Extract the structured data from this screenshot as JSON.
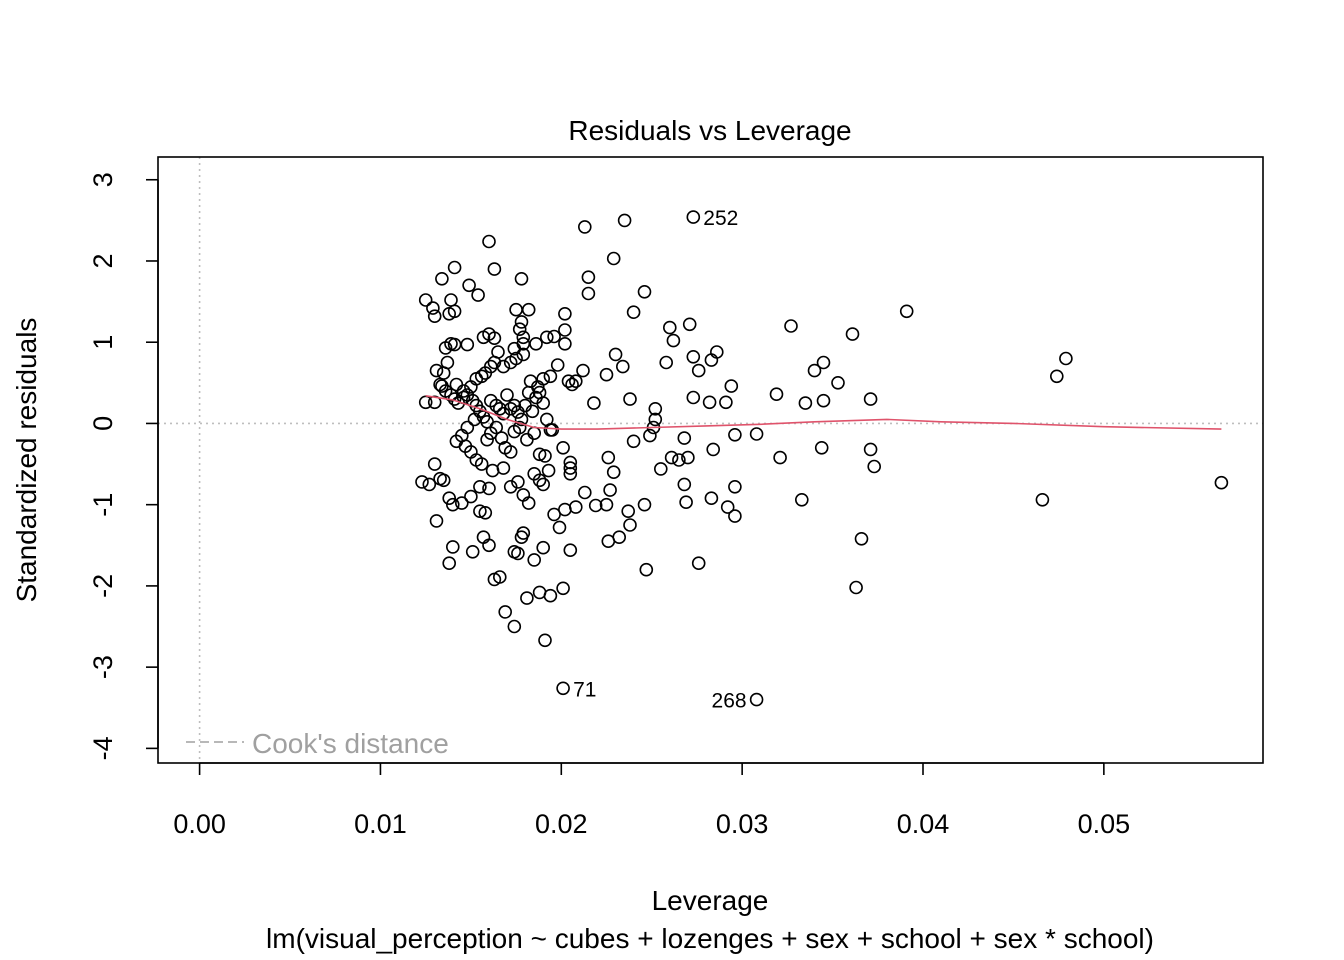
{
  "chart_data": {
    "type": "scatter",
    "title": "Residuals vs Leverage",
    "xlabel": "Leverage",
    "subtitle": "lm(visual_perception ~ cubes + lozenges + sex + school + sex * school)",
    "ylabel": "Standardized residuals",
    "xlim": [
      -0.0023,
      0.0588
    ],
    "ylim": [
      -4.18,
      3.28
    ],
    "xticks": [
      "0.00",
      "0.01",
      "0.02",
      "0.03",
      "0.04",
      "0.05"
    ],
    "xtick_values": [
      0,
      0.01,
      0.02,
      0.03,
      0.04,
      0.05
    ],
    "yticks": [
      "-4",
      "-3",
      "-2",
      "-1",
      "0",
      "1",
      "2",
      "3"
    ],
    "ytick_values": [
      -4,
      -3,
      -2,
      -1,
      0,
      1,
      2,
      3
    ],
    "grid": false,
    "reference_lines": {
      "x": 0,
      "y": 0,
      "style": "dotted",
      "color": "#bebebe"
    },
    "legend": {
      "entries": [
        "Cook's distance"
      ],
      "position": "bottom-left",
      "line_style": "dashed",
      "color": "#a0a0a0"
    },
    "smooth_color": "#DF536B",
    "smooth": [
      [
        0.0125,
        0.34
      ],
      [
        0.014,
        0.29
      ],
      [
        0.0155,
        0.18
      ],
      [
        0.017,
        0.05
      ],
      [
        0.0185,
        -0.05
      ],
      [
        0.02,
        -0.07
      ],
      [
        0.022,
        -0.07
      ],
      [
        0.025,
        -0.05
      ],
      [
        0.028,
        -0.03
      ],
      [
        0.031,
        -0.01
      ],
      [
        0.034,
        0.02
      ],
      [
        0.038,
        0.05
      ],
      [
        0.041,
        0.02
      ],
      [
        0.045,
        0.0
      ],
      [
        0.05,
        -0.04
      ],
      [
        0.0565,
        -0.07
      ]
    ],
    "annotations": [
      {
        "text": "252",
        "x": 0.0273,
        "y": 2.54,
        "side": "right"
      },
      {
        "text": "71",
        "x": 0.0201,
        "y": -3.26,
        "side": "right"
      },
      {
        "text": "268",
        "x": 0.0308,
        "y": -3.4,
        "side": "left"
      }
    ],
    "points": [
      [
        0.0273,
        2.54
      ],
      [
        0.0201,
        -3.26
      ],
      [
        0.0308,
        -3.4
      ],
      [
        0.0125,
        1.52
      ],
      [
        0.0129,
        1.42
      ],
      [
        0.013,
        1.32
      ],
      [
        0.0134,
        1.78
      ],
      [
        0.0141,
        1.92
      ],
      [
        0.0139,
        1.52
      ],
      [
        0.0141,
        1.38
      ],
      [
        0.0138,
        1.35
      ],
      [
        0.0149,
        1.7
      ],
      [
        0.0154,
        1.58
      ],
      [
        0.016,
        2.24
      ],
      [
        0.0163,
        1.9
      ],
      [
        0.0178,
        1.78
      ],
      [
        0.0213,
        2.42
      ],
      [
        0.0235,
        2.5
      ],
      [
        0.0229,
        2.03
      ],
      [
        0.0215,
        1.8
      ],
      [
        0.0215,
        1.6
      ],
      [
        0.0246,
        1.62
      ],
      [
        0.024,
        1.37
      ],
      [
        0.0175,
        1.4
      ],
      [
        0.0182,
        1.4
      ],
      [
        0.0178,
        1.25
      ],
      [
        0.0202,
        1.35
      ],
      [
        0.0202,
        1.15
      ],
      [
        0.0202,
        0.98
      ],
      [
        0.0192,
        1.06
      ],
      [
        0.0196,
        1.07
      ],
      [
        0.0177,
        1.16
      ],
      [
        0.0179,
        1.06
      ],
      [
        0.0179,
        0.98
      ],
      [
        0.0186,
        0.98
      ],
      [
        0.0174,
        0.92
      ],
      [
        0.0165,
        0.88
      ],
      [
        0.0163,
        1.05
      ],
      [
        0.016,
        1.1
      ],
      [
        0.0157,
        1.06
      ],
      [
        0.0148,
        0.97
      ],
      [
        0.0141,
        0.97
      ],
      [
        0.0139,
        0.98
      ],
      [
        0.0136,
        0.93
      ],
      [
        0.0137,
        0.75
      ],
      [
        0.0135,
        0.62
      ],
      [
        0.0131,
        0.65
      ],
      [
        0.0134,
        0.46
      ],
      [
        0.0142,
        0.48
      ],
      [
        0.0146,
        0.4
      ],
      [
        0.015,
        0.45
      ],
      [
        0.0153,
        0.55
      ],
      [
        0.0156,
        0.58
      ],
      [
        0.0158,
        0.62
      ],
      [
        0.0161,
        0.7
      ],
      [
        0.0163,
        0.75
      ],
      [
        0.0168,
        0.7
      ],
      [
        0.0172,
        0.75
      ],
      [
        0.0175,
        0.8
      ],
      [
        0.0179,
        0.85
      ],
      [
        0.0183,
        0.52
      ],
      [
        0.0187,
        0.45
      ],
      [
        0.019,
        0.55
      ],
      [
        0.0194,
        0.58
      ],
      [
        0.0198,
        0.72
      ],
      [
        0.0204,
        0.52
      ],
      [
        0.0206,
        0.48
      ],
      [
        0.0208,
        0.52
      ],
      [
        0.0212,
        0.65
      ],
      [
        0.0218,
        0.25
      ],
      [
        0.0225,
        0.6
      ],
      [
        0.023,
        0.85
      ],
      [
        0.0234,
        0.7
      ],
      [
        0.0238,
        0.3
      ],
      [
        0.0258,
        0.75
      ],
      [
        0.026,
        1.18
      ],
      [
        0.0262,
        1.02
      ],
      [
        0.0271,
        1.22
      ],
      [
        0.0273,
        0.82
      ],
      [
        0.0276,
        0.65
      ],
      [
        0.0283,
        0.78
      ],
      [
        0.0286,
        0.88
      ],
      [
        0.0294,
        0.46
      ],
      [
        0.0282,
        0.26
      ],
      [
        0.0291,
        0.26
      ],
      [
        0.0273,
        0.32
      ],
      [
        0.0319,
        0.36
      ],
      [
        0.0327,
        1.2
      ],
      [
        0.0335,
        0.25
      ],
      [
        0.034,
        0.65
      ],
      [
        0.0345,
        0.75
      ],
      [
        0.0345,
        0.28
      ],
      [
        0.0353,
        0.5
      ],
      [
        0.0361,
        1.1
      ],
      [
        0.0371,
        0.3
      ],
      [
        0.0391,
        1.38
      ],
      [
        0.0474,
        0.58
      ],
      [
        0.0479,
        0.8
      ],
      [
        0.0125,
        0.26
      ],
      [
        0.013,
        0.26
      ],
      [
        0.0133,
        0.48
      ],
      [
        0.0136,
        0.4
      ],
      [
        0.0139,
        0.35
      ],
      [
        0.0141,
        0.3
      ],
      [
        0.0143,
        0.25
      ],
      [
        0.0146,
        0.32
      ],
      [
        0.0148,
        0.35
      ],
      [
        0.0151,
        0.28
      ],
      [
        0.0153,
        0.22
      ],
      [
        0.0155,
        0.15
      ],
      [
        0.0157,
        0.08
      ],
      [
        0.0159,
        0.02
      ],
      [
        0.0161,
        0.28
      ],
      [
        0.0164,
        0.22
      ],
      [
        0.0166,
        0.18
      ],
      [
        0.0168,
        0.12
      ],
      [
        0.017,
        0.35
      ],
      [
        0.0172,
        0.18
      ],
      [
        0.0174,
        0.22
      ],
      [
        0.0176,
        0.14
      ],
      [
        0.0178,
        0.05
      ],
      [
        0.018,
        0.22
      ],
      [
        0.0182,
        0.38
      ],
      [
        0.0184,
        0.15
      ],
      [
        0.0186,
        0.32
      ],
      [
        0.0188,
        0.38
      ],
      [
        0.019,
        0.25
      ],
      [
        0.0192,
        0.05
      ],
      [
        0.0195,
        -0.08
      ],
      [
        0.0152,
        0.05
      ],
      [
        0.0148,
        -0.05
      ],
      [
        0.0145,
        -0.15
      ],
      [
        0.0142,
        -0.22
      ],
      [
        0.0147,
        -0.28
      ],
      [
        0.015,
        -0.35
      ],
      [
        0.0153,
        -0.45
      ],
      [
        0.0156,
        -0.5
      ],
      [
        0.0159,
        -0.2
      ],
      [
        0.0161,
        -0.12
      ],
      [
        0.0164,
        -0.05
      ],
      [
        0.0167,
        -0.18
      ],
      [
        0.0169,
        -0.3
      ],
      [
        0.0172,
        -0.35
      ],
      [
        0.0174,
        -0.1
      ],
      [
        0.0177,
        -0.05
      ],
      [
        0.0181,
        -0.2
      ],
      [
        0.0185,
        -0.12
      ],
      [
        0.0188,
        -0.38
      ],
      [
        0.0191,
        -0.4
      ],
      [
        0.0194,
        -0.08
      ],
      [
        0.0201,
        -0.3
      ],
      [
        0.0205,
        -0.55
      ],
      [
        0.0205,
        -0.48
      ],
      [
        0.0226,
        -0.42
      ],
      [
        0.0229,
        -0.6
      ],
      [
        0.024,
        -0.22
      ],
      [
        0.0249,
        -0.15
      ],
      [
        0.0252,
        0.05
      ],
      [
        0.0252,
        0.18
      ],
      [
        0.0251,
        -0.05
      ],
      [
        0.0255,
        -0.56
      ],
      [
        0.0261,
        -0.42
      ],
      [
        0.0265,
        -0.45
      ],
      [
        0.0268,
        -0.18
      ],
      [
        0.027,
        -0.42
      ],
      [
        0.0268,
        -0.75
      ],
      [
        0.0269,
        -0.97
      ],
      [
        0.0284,
        -0.32
      ],
      [
        0.0296,
        -0.14
      ],
      [
        0.0308,
        -0.13
      ],
      [
        0.0321,
        -0.42
      ],
      [
        0.0344,
        -0.3
      ],
      [
        0.0371,
        -0.32
      ],
      [
        0.0373,
        -0.53
      ],
      [
        0.0123,
        -0.72
      ],
      [
        0.0127,
        -0.75
      ],
      [
        0.013,
        -0.5
      ],
      [
        0.0133,
        -0.68
      ],
      [
        0.0135,
        -0.7
      ],
      [
        0.0138,
        -0.92
      ],
      [
        0.014,
        -1.0
      ],
      [
        0.0131,
        -1.2
      ],
      [
        0.0145,
        -0.98
      ],
      [
        0.015,
        -0.9
      ],
      [
        0.0155,
        -0.78
      ],
      [
        0.016,
        -0.8
      ],
      [
        0.0155,
        -1.08
      ],
      [
        0.0158,
        -1.1
      ],
      [
        0.0162,
        -0.58
      ],
      [
        0.0168,
        -0.55
      ],
      [
        0.0172,
        -0.78
      ],
      [
        0.0176,
        -0.72
      ],
      [
        0.0179,
        -0.88
      ],
      [
        0.0182,
        -0.98
      ],
      [
        0.0185,
        -0.62
      ],
      [
        0.0188,
        -0.7
      ],
      [
        0.019,
        -0.75
      ],
      [
        0.0193,
        -0.58
      ],
      [
        0.0196,
        -1.12
      ],
      [
        0.0199,
        -1.28
      ],
      [
        0.0202,
        -1.06
      ],
      [
        0.0205,
        -0.62
      ],
      [
        0.0208,
        -1.03
      ],
      [
        0.0213,
        -0.85
      ],
      [
        0.0219,
        -1.01
      ],
      [
        0.0225,
        -1.0
      ],
      [
        0.0227,
        -0.82
      ],
      [
        0.0226,
        -1.45
      ],
      [
        0.0232,
        -1.4
      ],
      [
        0.0237,
        -1.08
      ],
      [
        0.0238,
        -1.25
      ],
      [
        0.0246,
        -1.0
      ],
      [
        0.0283,
        -0.92
      ],
      [
        0.0292,
        -1.03
      ],
      [
        0.0296,
        -0.78
      ],
      [
        0.0296,
        -1.14
      ],
      [
        0.0333,
        -0.94
      ],
      [
        0.0466,
        -0.94
      ],
      [
        0.0565,
        -0.73
      ],
      [
        0.0138,
        -1.72
      ],
      [
        0.014,
        -1.52
      ],
      [
        0.0151,
        -1.58
      ],
      [
        0.0157,
        -1.4
      ],
      [
        0.016,
        -1.5
      ],
      [
        0.0163,
        -1.92
      ],
      [
        0.0166,
        -1.89
      ],
      [
        0.0169,
        -2.32
      ],
      [
        0.0174,
        -1.58
      ],
      [
        0.0176,
        -1.6
      ],
      [
        0.0178,
        -1.4
      ],
      [
        0.0179,
        -1.35
      ],
      [
        0.0181,
        -2.15
      ],
      [
        0.0185,
        -1.68
      ],
      [
        0.0188,
        -2.08
      ],
      [
        0.019,
        -1.53
      ],
      [
        0.0194,
        -2.12
      ],
      [
        0.0174,
        -2.5
      ],
      [
        0.0191,
        -2.67
      ],
      [
        0.0201,
        -2.03
      ],
      [
        0.0205,
        -1.56
      ],
      [
        0.0247,
        -1.8
      ],
      [
        0.0276,
        -1.72
      ],
      [
        0.0363,
        -2.02
      ],
      [
        0.0366,
        -1.42
      ]
    ]
  }
}
